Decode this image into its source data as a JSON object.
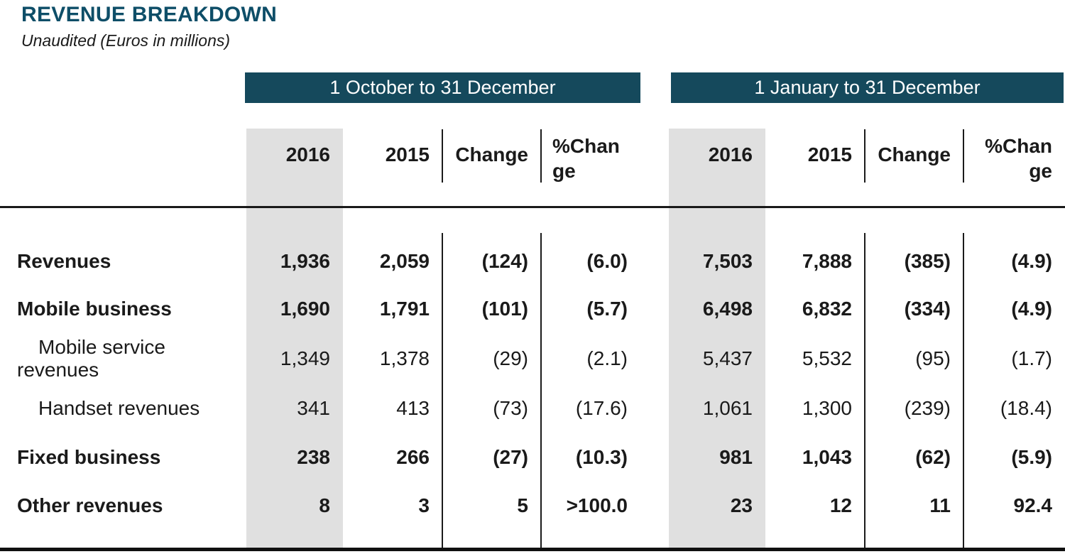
{
  "title": "REVENUE BREAKDOWN",
  "subtitle": "Unaudited (Euros in millions)",
  "periods": [
    {
      "label": "1 October to 31 December"
    },
    {
      "label": "1 January to 31 December"
    }
  ],
  "columns": {
    "y2016": "2016",
    "y2015": "2015",
    "change": "Change",
    "pct_change": "%Change",
    "pct_change_line1": "%Chan",
    "pct_change_line2": "ge"
  },
  "rows": [
    {
      "label": "Revenues",
      "emphasis": "bold",
      "q4_2016": "1,936",
      "q4_2015": "2,059",
      "q4_change": "(124)",
      "q4_pct": "(6.0)",
      "fy_2016": "7,503",
      "fy_2015": "7,888",
      "fy_change": "(385)",
      "fy_pct": "(4.9)"
    },
    {
      "label": "Mobile business",
      "emphasis": "bold",
      "q4_2016": "1,690",
      "q4_2015": "1,791",
      "q4_change": "(101)",
      "q4_pct": "(5.7)",
      "fy_2016": "6,498",
      "fy_2015": "6,832",
      "fy_change": "(334)",
      "fy_pct": "(4.9)"
    },
    {
      "label": "Mobile service revenues",
      "emphasis": "regular-indented",
      "q4_2016": "1,349",
      "q4_2015": "1,378",
      "q4_change": "(29)",
      "q4_pct": "(2.1)",
      "fy_2016": "5,437",
      "fy_2015": "5,532",
      "fy_change": "(95)",
      "fy_pct": "(1.7)"
    },
    {
      "label": "Handset revenues",
      "emphasis": "regular-indented",
      "q4_2016": "341",
      "q4_2015": "413",
      "q4_change": "(73)",
      "q4_pct": "(17.6)",
      "fy_2016": "1,061",
      "fy_2015": "1,300",
      "fy_change": "(239)",
      "fy_pct": "(18.4)"
    },
    {
      "label": "Fixed business",
      "emphasis": "bold",
      "q4_2016": "238",
      "q4_2015": "266",
      "q4_change": "(27)",
      "q4_pct": "(10.3)",
      "fy_2016": "981",
      "fy_2015": "1,043",
      "fy_change": "(62)",
      "fy_pct": "(5.9)"
    },
    {
      "label": "Other revenues",
      "emphasis": "bold",
      "q4_2016": "8",
      "q4_2015": "3",
      "q4_change": "5",
      "q4_pct": ">100.0",
      "fy_2016": "23",
      "fy_2015": "12",
      "fy_change": "11",
      "fy_pct": "92.4"
    }
  ],
  "colors": {
    "band_teal": "#15495C",
    "title_teal": "#0E4E68",
    "highlight_gray": "#E0E0E0",
    "text": "#1A1A1A",
    "line": "#1A1A1A"
  }
}
